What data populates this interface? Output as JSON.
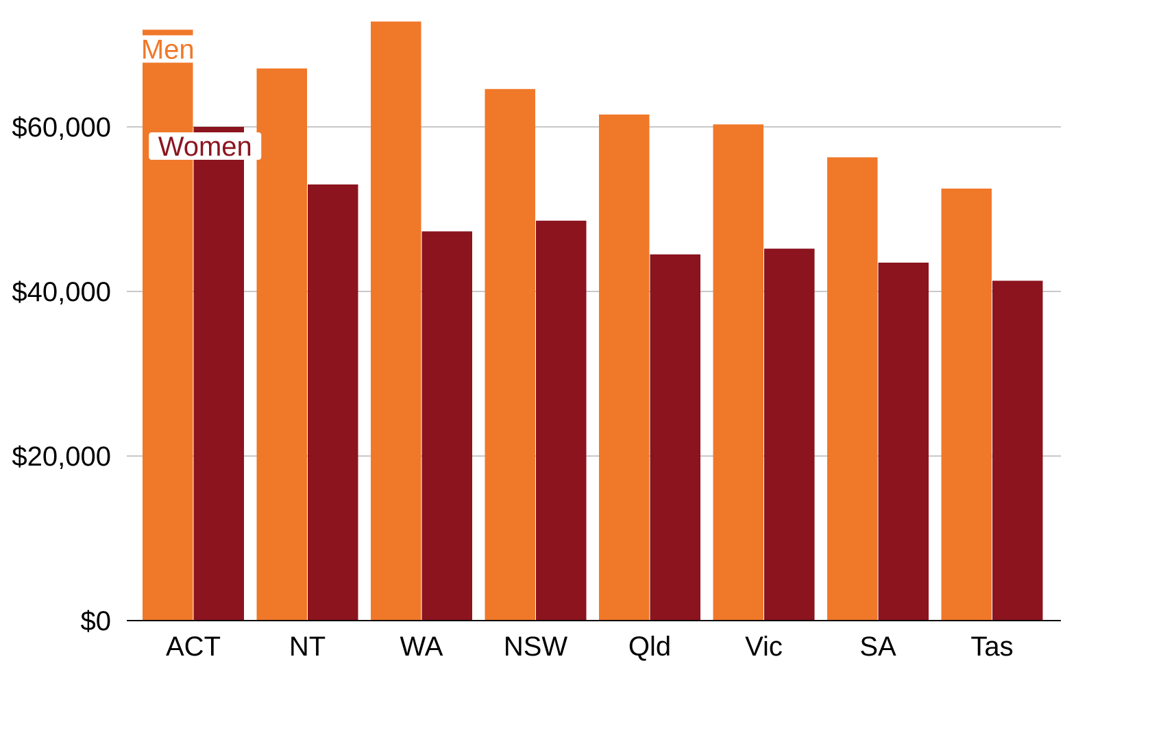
{
  "colors": {
    "men": "#f07829",
    "women": "#8b141e",
    "grid": "#c8c8c8",
    "axis": "#000000",
    "background": "#ffffff"
  },
  "chart_data": {
    "type": "bar",
    "title": "",
    "xlabel": "",
    "ylabel": "",
    "categories": [
      "ACT",
      "NT",
      "WA",
      "NSW",
      "Qld",
      "Vic",
      "SA",
      "Tas"
    ],
    "series": [
      {
        "name": "Men",
        "color": "#f07829",
        "values": [
          71800,
          67100,
          72800,
          64600,
          61500,
          60300,
          56300,
          52500
        ]
      },
      {
        "name": "Women",
        "color": "#8b141e",
        "values": [
          60000,
          53000,
          47300,
          48600,
          44500,
          45200,
          43500,
          41300
        ]
      }
    ],
    "ylim": [
      0,
      75000
    ],
    "yticks": [
      0,
      20000,
      40000,
      60000
    ],
    "ytick_labels": [
      "$0",
      "$20,000",
      "$40,000",
      "$60,000"
    ],
    "grid": true,
    "legend": "inline labels on first category"
  }
}
